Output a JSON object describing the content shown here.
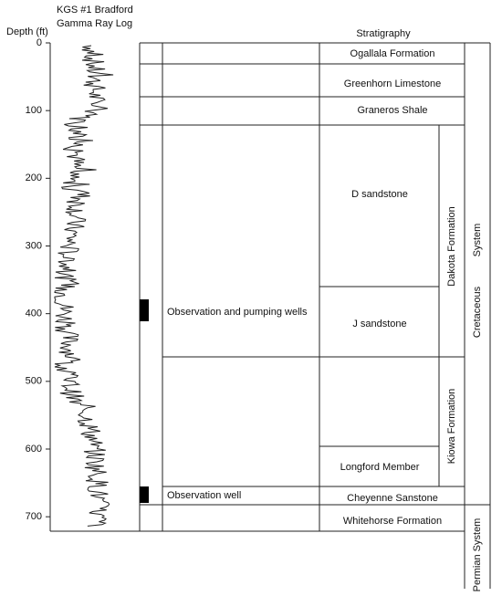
{
  "header": {
    "title_line1": "KGS #1 Bradford",
    "title_line2": "Gamma Ray Log"
  },
  "depth_axis": {
    "label": "Depth (ft)",
    "ylim": [
      0,
      720
    ],
    "yticks": [
      0,
      100,
      200,
      300,
      400,
      500,
      600,
      700
    ]
  },
  "stratigraphy": {
    "title": "Stratigraphy",
    "formations": [
      "Ogallala Formation",
      "Greenhorn Limestone",
      "Graneros Shale",
      "D sandstone",
      "J sandstone",
      "Longford Member",
      "Cheyenne Sanstone",
      "Whitehorse Formation"
    ],
    "groups": [
      "Dakota Formation",
      "Kiowa Formation"
    ],
    "systems": [
      "System",
      "Cretaceous",
      "Permian System"
    ]
  },
  "wells": [
    "Observation and pumping wells",
    "Observation well"
  ]
}
